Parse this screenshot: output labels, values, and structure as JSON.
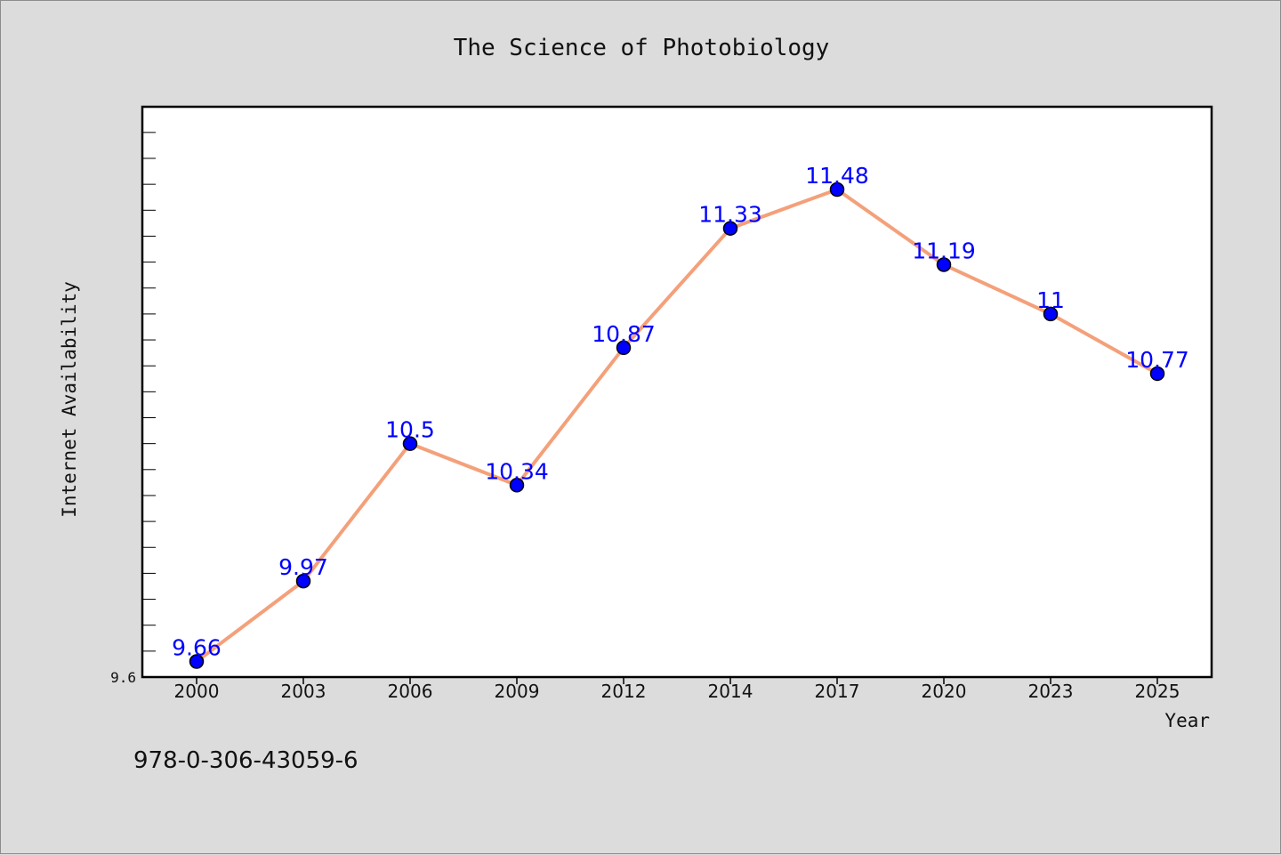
{
  "chart_data": {
    "type": "line",
    "title": "The Science of Photobiology",
    "xlabel": "Year",
    "ylabel": "Internet Availability",
    "categories": [
      "2000",
      "2003",
      "2006",
      "2009",
      "2012",
      "2014",
      "2017",
      "2020",
      "2023",
      "2025"
    ],
    "series": [
      {
        "values": [
          9.66,
          9.97,
          10.5,
          10.34,
          10.87,
          11.33,
          11.48,
          11.19,
          11.0,
          10.77
        ],
        "labels": [
          "9.66",
          "9.97",
          "10.5",
          "10.34",
          "10.87",
          "11.33",
          "11.48",
          "11.19",
          "11",
          "10.77"
        ],
        "line_color": "#f4a07a",
        "marker_color": "#0000ff"
      }
    ],
    "ylim": [
      9.6,
      11.8
    ],
    "ytick_labels": [
      "9.6"
    ],
    "grid": false,
    "footer": "978-0-306-43059-6"
  }
}
